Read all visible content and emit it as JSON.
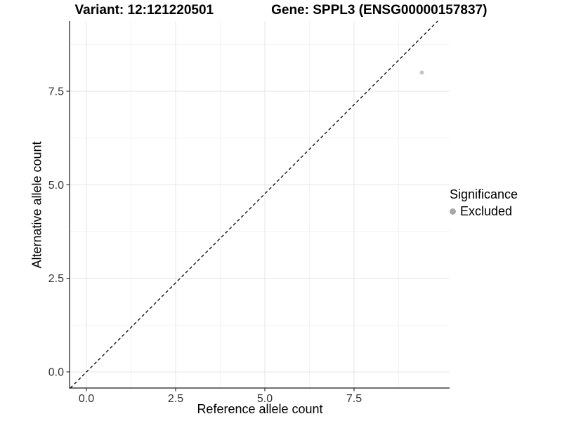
{
  "header": {
    "variant_title": "Variant: 12:121220501",
    "gene_title": "Gene: SPPL3 (ENSG00000157837)"
  },
  "chart_data": {
    "type": "scatter",
    "xlabel": "Reference allele count",
    "ylabel": "Alternative allele count",
    "x_ticks": [
      0.0,
      2.5,
      5.0,
      7.5
    ],
    "y_ticks": [
      0.0,
      2.5,
      5.0,
      7.5
    ],
    "x_minor_ticks": [
      1.25,
      3.75,
      6.25,
      8.75
    ],
    "y_minor_ticks": [
      1.25,
      3.75,
      6.25,
      8.75
    ],
    "xlim": [
      -0.45,
      10.2
    ],
    "ylim": [
      -0.45,
      9.8
    ],
    "tick_decimals": 1,
    "grid": "major+minor",
    "identity_line": {
      "slope": 1,
      "intercept": 0,
      "linetype": "dashed",
      "color": "#000000"
    },
    "series": [
      {
        "name": "Excluded",
        "color": "#c5c5c5",
        "points": [
          {
            "x": 9.4,
            "y": 8.0
          }
        ]
      }
    ],
    "legend": {
      "title": "Significance",
      "position": "right",
      "entries": [
        {
          "label": "Excluded",
          "marker": "circle",
          "swatch_color": "#a8a8a8"
        }
      ]
    },
    "colors": {
      "grid_major": "#e5e5e5",
      "grid_minor": "#f2f2f2",
      "axis_line": "#1a1a1a",
      "tick_text": "#333333"
    }
  }
}
